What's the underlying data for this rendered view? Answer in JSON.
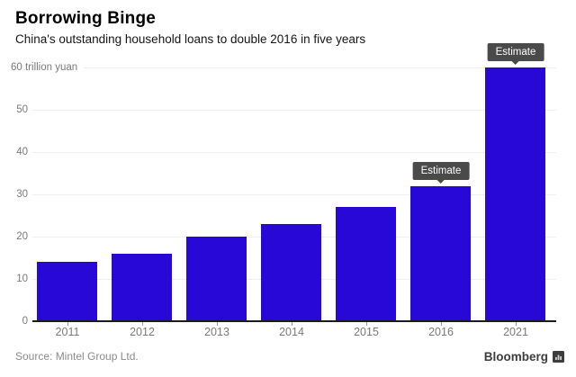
{
  "chart_data": {
    "type": "bar",
    "title": "Borrowing Binge",
    "subtitle": "China's outstanding household loans to double 2016 in five years",
    "categories": [
      "2011",
      "2012",
      "2013",
      "2014",
      "2015",
      "2016",
      "2021"
    ],
    "values": [
      14,
      16,
      20,
      23,
      27,
      32,
      60
    ],
    "xlabel": "",
    "ylabel": "",
    "ytop_label": "60 trillion yuan",
    "unit": "trillion yuan",
    "ylim": [
      0,
      60
    ],
    "ytick_step": 10,
    "grid": true,
    "legend": "none",
    "bar_color": "#2808d6",
    "annotations": [
      {
        "category": "2016",
        "label": "Estimate"
      },
      {
        "category": "2021",
        "label": "Estimate"
      }
    ]
  },
  "footer": {
    "source": "Source: Mintel Group Ltd.",
    "brand": "Bloomberg"
  },
  "colors": {
    "bar": "#2808d6",
    "tooltip_bg": "#4a4a4a",
    "grid": "#efefef",
    "axis": "#1b1b1b",
    "axis_label": "#7a7a7a"
  }
}
